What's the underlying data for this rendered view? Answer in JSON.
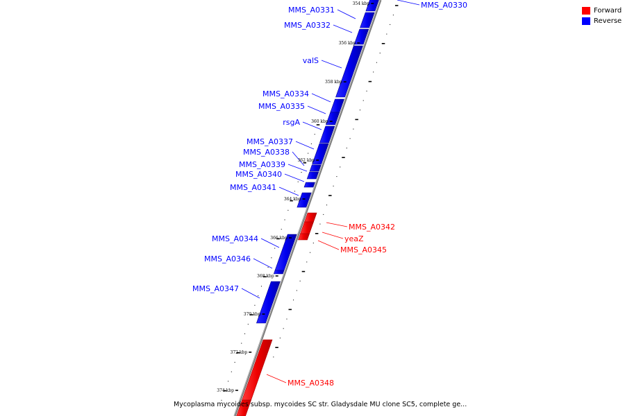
{
  "legend": {
    "items": [
      {
        "label": "Forward",
        "color": "#ff0000"
      },
      {
        "label": "Reverse",
        "color": "#0000ff"
      }
    ]
  },
  "caption": "Mycoplasma mycoides subsp. mycoides SC str. Gladysdale MU clone SC5, complete ge...",
  "colors": {
    "forward": "#ff0000",
    "reverse": "#0000ff",
    "backbone": "#808080"
  },
  "position_labels": [
    "354 kbp",
    "356 kbp",
    "358 kbp",
    "360 kbp",
    "362 kbp",
    "364 kbp",
    "366 kbp",
    "368 kbp",
    "370 kbp",
    "372 kbp",
    "374 kbp"
  ],
  "genes": [
    {
      "name": "MMS_A0330",
      "strand": "reverse"
    },
    {
      "name": "MMS_A0331",
      "strand": "reverse"
    },
    {
      "name": "MMS_A0332",
      "strand": "reverse"
    },
    {
      "name": "valS",
      "strand": "reverse"
    },
    {
      "name": "MMS_A0334",
      "strand": "reverse"
    },
    {
      "name": "MMS_A0335",
      "strand": "reverse"
    },
    {
      "name": "rsgA",
      "strand": "reverse"
    },
    {
      "name": "MMS_A0337",
      "strand": "reverse"
    },
    {
      "name": "MMS_A0338",
      "strand": "reverse"
    },
    {
      "name": "MMS_A0339",
      "strand": "reverse"
    },
    {
      "name": "MMS_A0340",
      "strand": "reverse"
    },
    {
      "name": "MMS_A0341",
      "strand": "reverse"
    },
    {
      "name": "MMS_A0342",
      "strand": "forward"
    },
    {
      "name": "yeaZ",
      "strand": "forward"
    },
    {
      "name": "MMS_A0345",
      "strand": "forward"
    },
    {
      "name": "MMS_A0344",
      "strand": "reverse"
    },
    {
      "name": "MMS_A0346",
      "strand": "reverse"
    },
    {
      "name": "MMS_A0347",
      "strand": "reverse"
    },
    {
      "name": "MMS_A0348",
      "strand": "forward"
    }
  ]
}
